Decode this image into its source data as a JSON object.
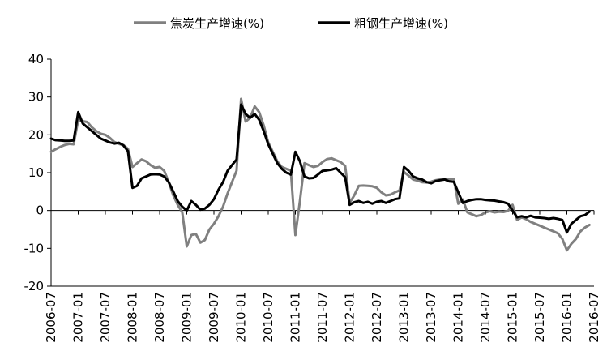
{
  "chart_data": {
    "type": "line",
    "title": "",
    "xlabel": "",
    "ylabel": "",
    "ylim": [
      -20,
      40
    ],
    "y_ticks": [
      40,
      30,
      20,
      10,
      0,
      -10,
      -20
    ],
    "x_range": [
      "2006-07",
      "2016-07"
    ],
    "x_tick_labels": [
      "2006-07",
      "2007-01",
      "2007-07",
      "2008-01",
      "2008-07",
      "2009-01",
      "2009-07",
      "2010-01",
      "2010-07",
      "2011-01",
      "2011-07",
      "2012-01",
      "2012-07",
      "2013-01",
      "2013-07",
      "2014-01",
      "2014-07",
      "2015-01",
      "2015-07",
      "2016-01",
      "2016-07"
    ],
    "grid": false,
    "legend": "top-center",
    "series": [
      {
        "name": "焦炭生产增速(%)",
        "color": "#808080",
        "points": [
          [
            "2006-07",
            15.5
          ],
          [
            "2006-08",
            16.2
          ],
          [
            "2006-09",
            16.8
          ],
          [
            "2006-10",
            17.3
          ],
          [
            "2006-11",
            17.6
          ],
          [
            "2006-12",
            17.5
          ],
          [
            "2007-01",
            24.0
          ],
          [
            "2007-02",
            23.6
          ],
          [
            "2007-03",
            23.4
          ],
          [
            "2007-04",
            22.0
          ],
          [
            "2007-05",
            21.0
          ],
          [
            "2007-06",
            20.3
          ],
          [
            "2007-07",
            20.0
          ],
          [
            "2007-08",
            19.2
          ],
          [
            "2007-09",
            18.1
          ],
          [
            "2007-10",
            17.6
          ],
          [
            "2007-11",
            17.3
          ],
          [
            "2007-12",
            16.3
          ],
          [
            "2008-01",
            11.5
          ],
          [
            "2008-02",
            12.5
          ],
          [
            "2008-03",
            13.5
          ],
          [
            "2008-04",
            13.0
          ],
          [
            "2008-05",
            12.0
          ],
          [
            "2008-06",
            11.3
          ],
          [
            "2008-07",
            11.5
          ],
          [
            "2008-08",
            10.5
          ],
          [
            "2008-09",
            7.5
          ],
          [
            "2008-10",
            4.0
          ],
          [
            "2008-11",
            1.5
          ],
          [
            "2008-12",
            -0.5
          ],
          [
            "2009-01",
            -9.5
          ],
          [
            "2009-02",
            -6.5
          ],
          [
            "2009-03",
            -6.2
          ],
          [
            "2009-04",
            -8.5
          ],
          [
            "2009-05",
            -7.8
          ],
          [
            "2009-06",
            -5.0
          ],
          [
            "2009-07",
            -3.5
          ],
          [
            "2009-08",
            -1.5
          ],
          [
            "2009-09",
            1.0
          ],
          [
            "2009-10",
            4.5
          ],
          [
            "2009-11",
            7.5
          ],
          [
            "2009-12",
            10.5
          ],
          [
            "2010-01",
            29.5
          ],
          [
            "2010-02",
            23.5
          ],
          [
            "2010-03",
            24.5
          ],
          [
            "2010-04",
            27.5
          ],
          [
            "2010-05",
            26.0
          ],
          [
            "2010-06",
            22.5
          ],
          [
            "2010-07",
            18.0
          ],
          [
            "2010-08",
            15.5
          ],
          [
            "2010-09",
            13.0
          ],
          [
            "2010-10",
            11.5
          ],
          [
            "2010-11",
            11.0
          ],
          [
            "2010-12",
            10.5
          ],
          [
            "2011-01",
            -6.5
          ],
          [
            "2011-02",
            2.5
          ],
          [
            "2011-03",
            12.5
          ],
          [
            "2011-04",
            12.0
          ],
          [
            "2011-05",
            11.5
          ],
          [
            "2011-06",
            11.8
          ],
          [
            "2011-07",
            12.8
          ],
          [
            "2011-08",
            13.6
          ],
          [
            "2011-09",
            13.8
          ],
          [
            "2011-10",
            13.3
          ],
          [
            "2011-11",
            12.8
          ],
          [
            "2011-12",
            11.8
          ],
          [
            "2012-01",
            2.0
          ],
          [
            "2012-02",
            4.0
          ],
          [
            "2012-03",
            6.5
          ],
          [
            "2012-04",
            6.6
          ],
          [
            "2012-05",
            6.5
          ],
          [
            "2012-06",
            6.4
          ],
          [
            "2012-07",
            6.0
          ],
          [
            "2012-08",
            4.8
          ],
          [
            "2012-09",
            4.0
          ],
          [
            "2012-10",
            4.2
          ],
          [
            "2012-11",
            4.8
          ],
          [
            "2012-12",
            5.3
          ],
          [
            "2013-01",
            10.2
          ],
          [
            "2013-02",
            9.2
          ],
          [
            "2013-03",
            8.2
          ],
          [
            "2013-04",
            7.9
          ],
          [
            "2013-05",
            7.5
          ],
          [
            "2013-06",
            7.4
          ],
          [
            "2013-07",
            7.6
          ],
          [
            "2013-08",
            8.0
          ],
          [
            "2013-09",
            8.2
          ],
          [
            "2013-10",
            8.3
          ],
          [
            "2013-11",
            8.2
          ],
          [
            "2013-12",
            8.4
          ],
          [
            "2014-01",
            1.8
          ],
          [
            "2014-02",
            2.9
          ],
          [
            "2014-03",
            -0.5
          ],
          [
            "2014-04",
            -1.0
          ],
          [
            "2014-05",
            -1.5
          ],
          [
            "2014-06",
            -1.2
          ],
          [
            "2014-07",
            -0.5
          ],
          [
            "2014-08",
            -0.2
          ],
          [
            "2014-09",
            -0.5
          ],
          [
            "2014-10",
            -0.3
          ],
          [
            "2014-11",
            -0.4
          ],
          [
            "2014-12",
            -0.1
          ],
          [
            "2015-01",
            1.5
          ],
          [
            "2015-02",
            -2.5
          ],
          [
            "2015-03",
            -1.8
          ],
          [
            "2015-04",
            -2.3
          ],
          [
            "2015-05",
            -3.0
          ],
          [
            "2015-06",
            -3.5
          ],
          [
            "2015-07",
            -4.0
          ],
          [
            "2015-08",
            -4.5
          ],
          [
            "2015-09",
            -5.0
          ],
          [
            "2015-10",
            -5.5
          ],
          [
            "2015-11",
            -6.0
          ],
          [
            "2015-12",
            -7.5
          ],
          [
            "2016-01",
            -10.5
          ],
          [
            "2016-02",
            -8.8
          ],
          [
            "2016-03",
            -7.5
          ],
          [
            "2016-04",
            -5.5
          ],
          [
            "2016-05",
            -4.5
          ],
          [
            "2016-06",
            -3.8
          ]
        ]
      },
      {
        "name": "粗钢生产增速(%)",
        "color": "#000000",
        "points": [
          [
            "2006-07",
            19.0
          ],
          [
            "2006-08",
            18.6
          ],
          [
            "2006-09",
            18.5
          ],
          [
            "2006-10",
            18.4
          ],
          [
            "2006-11",
            18.4
          ],
          [
            "2006-12",
            18.5
          ],
          [
            "2007-01",
            26.0
          ],
          [
            "2007-02",
            23.0
          ],
          [
            "2007-03",
            22.0
          ],
          [
            "2007-04",
            21.0
          ],
          [
            "2007-05",
            20.0
          ],
          [
            "2007-06",
            19.0
          ],
          [
            "2007-07",
            18.5
          ],
          [
            "2007-08",
            18.0
          ],
          [
            "2007-09",
            17.7
          ],
          [
            "2007-10",
            17.9
          ],
          [
            "2007-11",
            17.2
          ],
          [
            "2007-12",
            15.7
          ],
          [
            "2008-01",
            6.0
          ],
          [
            "2008-02",
            6.5
          ],
          [
            "2008-03",
            8.5
          ],
          [
            "2008-04",
            9.0
          ],
          [
            "2008-05",
            9.5
          ],
          [
            "2008-06",
            9.6
          ],
          [
            "2008-07",
            9.5
          ],
          [
            "2008-08",
            9.0
          ],
          [
            "2008-09",
            7.5
          ],
          [
            "2008-10",
            5.0
          ],
          [
            "2008-11",
            2.5
          ],
          [
            "2008-12",
            1.0
          ],
          [
            "2009-01",
            0.0
          ],
          [
            "2009-02",
            2.5
          ],
          [
            "2009-03",
            1.5
          ],
          [
            "2009-04",
            0.2
          ],
          [
            "2009-05",
            0.5
          ],
          [
            "2009-06",
            1.5
          ],
          [
            "2009-07",
            3.0
          ],
          [
            "2009-08",
            5.5
          ],
          [
            "2009-09",
            7.5
          ],
          [
            "2009-10",
            10.5
          ],
          [
            "2009-11",
            12.0
          ],
          [
            "2009-12",
            13.5
          ],
          [
            "2010-01",
            28.0
          ],
          [
            "2010-02",
            25.5
          ],
          [
            "2010-03",
            24.5
          ],
          [
            "2010-04",
            25.5
          ],
          [
            "2010-05",
            24.0
          ],
          [
            "2010-06",
            21.0
          ],
          [
            "2010-07",
            17.5
          ],
          [
            "2010-08",
            15.0
          ],
          [
            "2010-09",
            12.5
          ],
          [
            "2010-10",
            11.0
          ],
          [
            "2010-11",
            10.0
          ],
          [
            "2010-12",
            9.5
          ],
          [
            "2011-01",
            15.5
          ],
          [
            "2011-02",
            13.0
          ],
          [
            "2011-03",
            9.0
          ],
          [
            "2011-04",
            8.5
          ],
          [
            "2011-05",
            8.6
          ],
          [
            "2011-06",
            9.5
          ],
          [
            "2011-07",
            10.5
          ],
          [
            "2011-08",
            10.6
          ],
          [
            "2011-09",
            10.8
          ],
          [
            "2011-10",
            11.2
          ],
          [
            "2011-11",
            10.0
          ],
          [
            "2011-12",
            8.8
          ],
          [
            "2012-01",
            1.5
          ],
          [
            "2012-02",
            2.2
          ],
          [
            "2012-03",
            2.5
          ],
          [
            "2012-04",
            2.0
          ],
          [
            "2012-05",
            2.3
          ],
          [
            "2012-06",
            1.8
          ],
          [
            "2012-07",
            2.3
          ],
          [
            "2012-08",
            2.5
          ],
          [
            "2012-09",
            2.0
          ],
          [
            "2012-10",
            2.5
          ],
          [
            "2012-11",
            3.0
          ],
          [
            "2012-12",
            3.2
          ],
          [
            "2013-01",
            11.5
          ],
          [
            "2013-02",
            10.5
          ],
          [
            "2013-03",
            9.0
          ],
          [
            "2013-04",
            8.5
          ],
          [
            "2013-05",
            8.2
          ],
          [
            "2013-06",
            7.5
          ],
          [
            "2013-07",
            7.2
          ],
          [
            "2013-08",
            7.8
          ],
          [
            "2013-09",
            8.0
          ],
          [
            "2013-10",
            8.2
          ],
          [
            "2013-11",
            7.7
          ],
          [
            "2013-12",
            7.6
          ],
          [
            "2014-02",
            2.0
          ],
          [
            "2014-03",
            2.5
          ],
          [
            "2014-04",
            2.8
          ],
          [
            "2014-05",
            3.0
          ],
          [
            "2014-06",
            3.0
          ],
          [
            "2014-07",
            2.8
          ],
          [
            "2014-08",
            2.7
          ],
          [
            "2014-09",
            2.6
          ],
          [
            "2014-10",
            2.4
          ],
          [
            "2014-11",
            2.2
          ],
          [
            "2014-12",
            1.8
          ],
          [
            "2015-02",
            -1.8
          ],
          [
            "2015-03",
            -1.5
          ],
          [
            "2015-04",
            -1.8
          ],
          [
            "2015-05",
            -1.4
          ],
          [
            "2015-06",
            -1.8
          ],
          [
            "2015-07",
            -1.9
          ],
          [
            "2015-08",
            -2.0
          ],
          [
            "2015-09",
            -2.2
          ],
          [
            "2015-10",
            -2.0
          ],
          [
            "2015-11",
            -2.2
          ],
          [
            "2015-12",
            -2.5
          ],
          [
            "2016-01",
            -5.8
          ],
          [
            "2016-02",
            -3.5
          ],
          [
            "2016-03",
            -2.5
          ],
          [
            "2016-04",
            -1.5
          ],
          [
            "2016-05",
            -1.2
          ],
          [
            "2016-06",
            -0.3
          ]
        ]
      }
    ]
  }
}
